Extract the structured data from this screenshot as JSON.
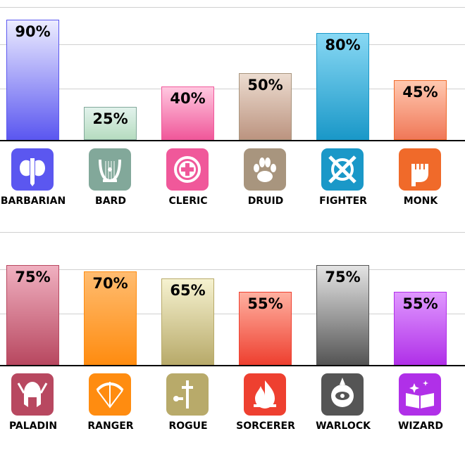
{
  "chart_data": [
    {
      "type": "bar",
      "ylim": [
        0,
        100
      ],
      "grid": true,
      "categories": [
        "BARBARIAN",
        "BARD",
        "CLERIC",
        "DRUID",
        "FIGHTER",
        "MONK"
      ],
      "values": [
        90,
        25,
        40,
        50,
        80,
        45
      ],
      "labels": [
        "90%",
        "25%",
        "40%",
        "50%",
        "80%",
        "45%"
      ],
      "colors": [
        "#5b57f0",
        "#82a89a",
        "#f0589a",
        "#a8957e",
        "#1a98c8",
        "#f06a2a"
      ],
      "icons": [
        "double-axe-icon",
        "lyre-icon",
        "holy-cross-icon",
        "paw-icon",
        "crossed-swords-shield-icon",
        "fist-icon"
      ]
    },
    {
      "type": "bar",
      "ylim": [
        0,
        100
      ],
      "grid": true,
      "categories": [
        "PALADIN",
        "RANGER",
        "ROGUE",
        "SORCERER",
        "WARLOCK",
        "WIZARD"
      ],
      "values": [
        75,
        70,
        65,
        55,
        75,
        55
      ],
      "labels": [
        "75%",
        "70%",
        "65%",
        "55%",
        "75%",
        "55%"
      ],
      "colors": [
        "#b84860",
        "#ff8c10",
        "#b8aa6a",
        "#ee4030",
        "#555555",
        "#b030e8"
      ],
      "icons": [
        "winged-helmet-icon",
        "bow-arrow-icon",
        "dagger-key-icon",
        "flame-icon",
        "eye-icon",
        "spellbook-icon"
      ]
    }
  ]
}
